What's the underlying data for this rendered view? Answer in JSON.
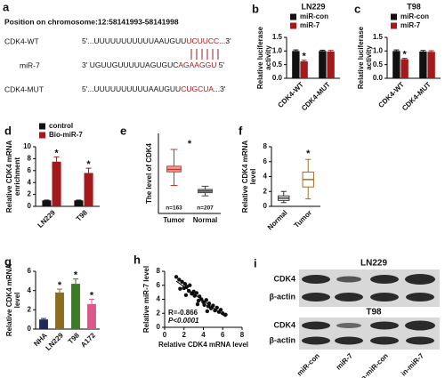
{
  "panel_a": {
    "label": "a",
    "position": "Position on chromosome:12:58141993-58141998",
    "rows": [
      {
        "name": "CDK4-WT",
        "seq": "5'...UUUUUUUUUUUAAUGUU",
        "site": "UCUUCC",
        "end": "...3'"
      },
      {
        "name": "miR-7",
        "seq": "3' UGUUGUUUUUAGUGUC",
        "site": "AGAAGGU",
        "end": " 5'"
      },
      {
        "name": "CDK4-MUT",
        "seq": "5'...UUUUUUUUUUAAUGUU",
        "site": "CUGCUA",
        "end": "...3'"
      }
    ]
  },
  "chart_data": [
    {
      "type": "bar",
      "panel_label": "b",
      "title": "LN229",
      "ylabel": [
        "Relative luciferase",
        "activity"
      ],
      "categories": [
        "CDK4-WT",
        "CDK4-MUT"
      ],
      "series": [
        {
          "name": "miR-con",
          "color": "#111111",
          "values": [
            1.0,
            1.0
          ],
          "errors": [
            0.04,
            0.03
          ]
        },
        {
          "name": "miR-7",
          "color": "#a3191c",
          "values": [
            0.62,
            0.98
          ],
          "errors": [
            0.04,
            0.04
          ],
          "annotations": [
            "*",
            null
          ]
        }
      ],
      "ylim": [
        0,
        1.5
      ],
      "yticks": [
        {
          "value": 0,
          "label": "0.0"
        },
        0.5,
        {
          "value": 1,
          "label": "1.0"
        },
        1.5
      ]
    },
    {
      "type": "bar",
      "panel_label": "c",
      "title": "T98",
      "ylabel": [
        "Relative luciferase",
        "activity"
      ],
      "categories": [
        "CDK4-WT",
        "CDK4-MUT"
      ],
      "series": [
        {
          "name": "miR-con",
          "color": "#111111",
          "values": [
            1.0,
            0.98
          ],
          "errors": [
            0.04,
            0.04
          ]
        },
        {
          "name": "miR-7",
          "color": "#a3191c",
          "values": [
            0.7,
            0.97
          ],
          "errors": [
            0.03,
            0.04
          ],
          "annotations": [
            "*",
            null
          ]
        }
      ],
      "ylim": [
        0,
        1.5
      ],
      "yticks": [
        {
          "value": 0,
          "label": "0.0"
        },
        0.5,
        {
          "value": 1,
          "label": "1.0"
        },
        1.5
      ]
    },
    {
      "type": "bar",
      "panel_label": "d",
      "ylabel": [
        "Relative CDK4 mRNA",
        "enrichment"
      ],
      "categories": [
        "LN229",
        "T98"
      ],
      "series": [
        {
          "name": "control",
          "color": "#111111",
          "values": [
            1.0,
            1.0
          ],
          "errors": [
            0.05,
            0.05
          ]
        },
        {
          "name": "Bio-miR-7",
          "color": "#a3191c",
          "values": [
            7.5,
            5.6
          ],
          "errors": [
            0.8,
            0.8
          ],
          "annotations": [
            "*",
            "*"
          ]
        }
      ],
      "ylim": [
        0,
        10
      ],
      "yticks": [
        0,
        2,
        4,
        6,
        8,
        10
      ]
    },
    {
      "type": "box",
      "panel_label": "e",
      "ylabel": [
        "The level of CDK4"
      ],
      "categories": [
        "Tumor",
        "Normal"
      ],
      "counts": [
        "n=163",
        "n=207"
      ],
      "boxes": [
        {
          "min": 3.5,
          "q1": 5.2,
          "median": 5.5,
          "q3": 5.9,
          "max": 8.0
        },
        {
          "min": 2.2,
          "q1": 2.6,
          "median": 2.8,
          "q3": 3.0,
          "max": 3.4
        }
      ],
      "colors": [
        "#c0392b",
        "#444444"
      ],
      "fills": [
        "#f2a3a3",
        "#bbbbbb"
      ],
      "annotations": [
        "*",
        null
      ],
      "ylim": [
        0,
        10
      ]
    },
    {
      "type": "box",
      "panel_label": "f",
      "ylabel": [
        "Relative CDK4 mRNA",
        "level"
      ],
      "categories": [
        "Normal",
        "Tumor"
      ],
      "boxes": [
        {
          "min": 0.5,
          "q1": 0.8,
          "median": 1.1,
          "q3": 1.4,
          "max": 2.0
        },
        {
          "min": 1.0,
          "q1": 2.6,
          "median": 3.6,
          "q3": 4.6,
          "max": 6.3
        }
      ],
      "colors": [
        "#333333",
        "#a0702a"
      ],
      "fills": [
        "#ffffff",
        "#ffffff"
      ],
      "annotations": [
        null,
        "*"
      ],
      "ylim": [
        0,
        8
      ],
      "yticks": [
        0,
        2,
        4,
        6,
        8
      ]
    },
    {
      "type": "bar",
      "panel_label": "g",
      "ylabel": [
        "Relative CDK4 mRNA",
        "level"
      ],
      "categories": [
        "NHA",
        "LN229",
        "T98",
        "A172"
      ],
      "values": [
        1.0,
        3.8,
        4.7,
        2.6
      ],
      "errors": [
        0.1,
        0.35,
        0.5,
        0.5
      ],
      "colors": [
        "#1f2a5a",
        "#8a6d1e",
        "#3d7a2a",
        "#d9588a"
      ],
      "annotations": [
        null,
        "*",
        "*",
        "*"
      ],
      "ylim": [
        0,
        6
      ],
      "yticks": [
        0,
        2,
        4,
        6
      ]
    },
    {
      "type": "scatter",
      "panel_label": "h",
      "xlabel": "Relative CDK4 mRNA level",
      "ylabel": [
        "Relative miR-7 level"
      ],
      "x": [
        1.2,
        1.5,
        1.8,
        2.0,
        2.1,
        2.3,
        2.5,
        2.6,
        2.8,
        3.0,
        3.1,
        3.3,
        3.5,
        3.6,
        3.8,
        4.0,
        4.1,
        4.3,
        4.5,
        4.6,
        4.8,
        5.0,
        5.2,
        5.4,
        5.6,
        5.8,
        6.0,
        6.3,
        2.2,
        3.4,
        4.4,
        1.6
      ],
      "y": [
        7.2,
        6.8,
        6.5,
        5.6,
        6.2,
        5.8,
        5.2,
        6.0,
        4.8,
        5.1,
        4.5,
        4.9,
        3.8,
        4.4,
        4.0,
        3.6,
        3.2,
        3.9,
        3.0,
        3.4,
        2.7,
        3.1,
        2.4,
        2.8,
        2.2,
        2.5,
        2.0,
        1.8,
        4.6,
        3.3,
        2.3,
        5.5
      ],
      "color": "#111111",
      "stats": [
        "R=-0.866",
        "P<0.0001"
      ],
      "xlim": [
        0,
        8
      ],
      "xticks": [
        0,
        2,
        4,
        6,
        8
      ],
      "ylim": [
        0,
        8
      ],
      "yticks": [
        0,
        2,
        4,
        6,
        8
      ]
    }
  ],
  "panel_i": {
    "label": "i",
    "groups": [
      {
        "title": "LN229",
        "rows": [
          "CDK4",
          "β-actin"
        ]
      },
      {
        "title": "T98",
        "rows": [
          "CDK4",
          "β-actin"
        ]
      }
    ],
    "lanes": [
      "miR-con",
      "miR-7",
      "in-miR-con",
      "in-miR-7"
    ]
  }
}
